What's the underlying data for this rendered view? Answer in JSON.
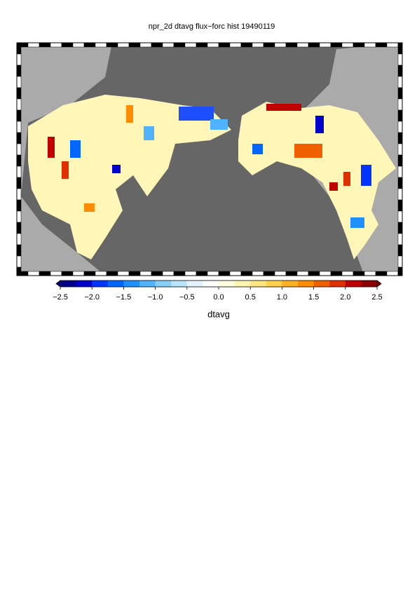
{
  "chart_data": {
    "type": "map",
    "title": "npr_2d dtavg flux−forc hist 19490119",
    "colorbar": {
      "label": "dtavg",
      "lim": [
        -2.5,
        2.5
      ],
      "ticks": [
        {
          "value": -2.5,
          "label": "−2.5"
        },
        {
          "value": -2.0,
          "label": "−2.0"
        },
        {
          "value": -1.5,
          "label": "−1.5"
        },
        {
          "value": -1.0,
          "label": "−1.0"
        },
        {
          "value": -0.5,
          "label": "−0.5"
        },
        {
          "value": 0.0,
          "label": "0.0"
        },
        {
          "value": 0.5,
          "label": "0.5"
        },
        {
          "value": 1.0,
          "label": "1.0"
        },
        {
          "value": 1.5,
          "label": "1.5"
        },
        {
          "value": 2.0,
          "label": "2.0"
        },
        {
          "value": 2.5,
          "label": "2.5"
        }
      ],
      "colors": [
        "#00008b",
        "#0000cd",
        "#0033ff",
        "#0066ff",
        "#1e90ff",
        "#4fb3ff",
        "#87cefa",
        "#b8e4ff",
        "#e4f5ff",
        "#ffffff",
        "#ffffe0",
        "#fff5b0",
        "#ffe680",
        "#ffd04a",
        "#ffb020",
        "#ff8c00",
        "#f06000",
        "#e03000",
        "#c00000",
        "#8b0000"
      ]
    }
  }
}
